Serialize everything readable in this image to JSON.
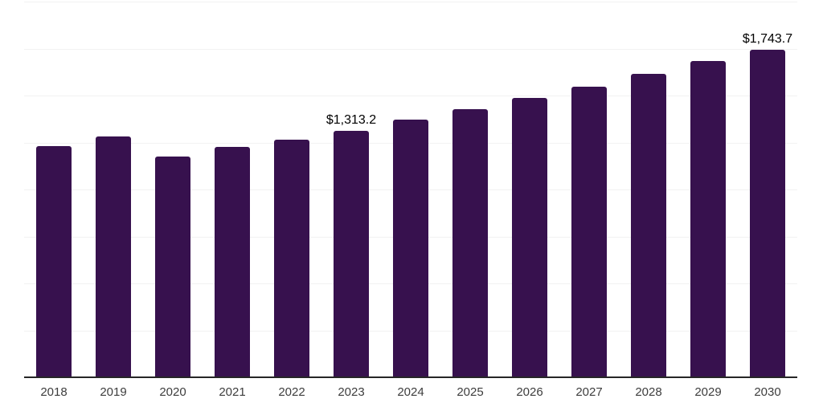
{
  "chart_data": {
    "type": "bar",
    "title": "",
    "xlabel": "",
    "ylabel": "",
    "categories": [
      "2018",
      "2019",
      "2020",
      "2021",
      "2022",
      "2023",
      "2024",
      "2025",
      "2026",
      "2027",
      "2028",
      "2029",
      "2030"
    ],
    "values": [
      1229,
      1280,
      1175,
      1225,
      1267,
      1313.2,
      1370,
      1426,
      1486,
      1545,
      1614,
      1682,
      1743.7
    ],
    "point_labels": [
      "",
      "",
      "",
      "",
      "",
      "$1,313.2",
      "",
      "",
      "",
      "",
      "",
      "",
      "$1,743.7"
    ],
    "ylim": [
      0,
      2000
    ],
    "gridline_interval": 250,
    "grid": "horizontal",
    "y_tick_labels_visible": false,
    "legend_position": "none",
    "colors": {
      "bar": "#37114E",
      "gridline": "#F2F2F2",
      "axis_line": "#262626",
      "tick_label": "#3D3D3D",
      "data_label": "#000000",
      "background": "#FFFFFF"
    }
  }
}
